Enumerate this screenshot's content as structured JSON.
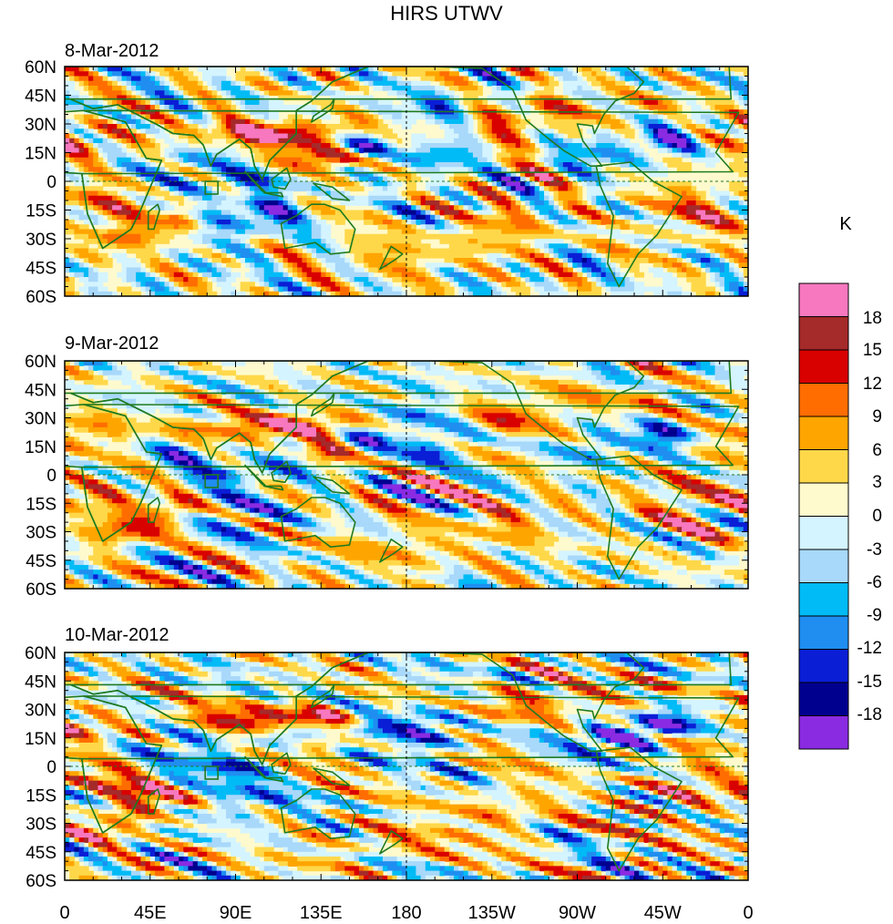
{
  "title": "HIRS UTWV",
  "colorbar": {
    "unit": "K",
    "levels": [
      "18",
      "15",
      "12",
      "9",
      "6",
      "3",
      "0",
      "-3",
      "-6",
      "-9",
      "-12",
      "-15",
      "-18"
    ],
    "colors": [
      "#f778bf",
      "#a52a2a",
      "#d90000",
      "#ff6d00",
      "#ffa500",
      "#ffd84a",
      "#fffacd",
      "#d4f4ff",
      "#a8d8fa",
      "#00bbf6",
      "#1f8ef0",
      "#0a1ed6",
      "#00008f",
      "#8a2be2"
    ]
  },
  "panels": [
    {
      "date": "8-Mar-2012"
    },
    {
      "date": "9-Mar-2012"
    },
    {
      "date": "10-Mar-2012"
    }
  ],
  "lat_labels": [
    "60N",
    "45N",
    "30N",
    "15N",
    "0",
    "15S",
    "30S",
    "45S",
    "60S"
  ],
  "lon_labels": [
    "0",
    "45E",
    "90E",
    "135E",
    "180",
    "135W",
    "90W",
    "45W",
    "0"
  ],
  "style": {
    "coast_color": "#1f7a1f",
    "axis_color": "#000000"
  }
}
